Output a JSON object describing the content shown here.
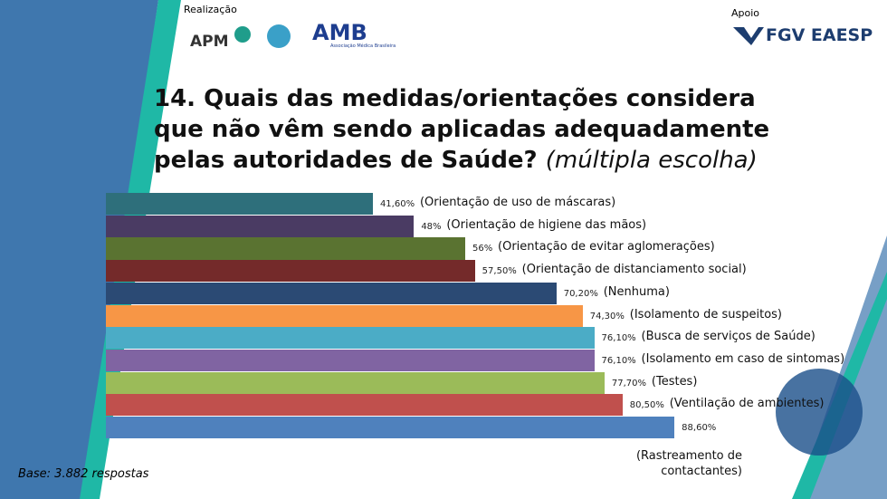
{
  "header": {
    "left_label": "Realização",
    "right_label": "Apoio",
    "logos": [
      "APM",
      "AMB",
      "Associação Médica Brasileira",
      "FGV EAESP"
    ]
  },
  "chart_data": {
    "type": "bar",
    "orientation": "horizontal",
    "title": "14. Quais das medidas/orientações considera que não vêm sendo aplicadas adequadamente pelas autoridades de Saúde?",
    "subtitle": "(múltipla escolha)",
    "categories": [
      "(Orientação de uso de máscaras)",
      "(Orientação de higiene das mãos)",
      "(Orientação de evitar aglomerações)",
      "(Orientação de distanciamento social)",
      "(Nenhuma)",
      "(Isolamento de suspeitos)",
      "(Busca de serviços de Saúde)",
      "(Isolamento em caso de sintomas)",
      "(Testes)",
      "(Ventilação de ambientes)",
      "(Rastreamento de contactantes)"
    ],
    "values": [
      41.6,
      48,
      56,
      57.5,
      70.2,
      74.3,
      76.1,
      76.1,
      77.7,
      80.5,
      88.6
    ],
    "value_labels": [
      "41,60%",
      "48%",
      "56%",
      "57,50%",
      "70,20%",
      "74,30%",
      "76,10%",
      "76,10%",
      "77,70%",
      "80,50%",
      "88,60%"
    ],
    "colors": [
      "#2e6f7b",
      "#4a3b63",
      "#5a7331",
      "#742a2a",
      "#2b4a74",
      "#f79646",
      "#4bacc6",
      "#8064a2",
      "#9bbb59",
      "#c0504d",
      "#4f81bd"
    ],
    "footnote": "Base: 3.882 respostas"
  }
}
